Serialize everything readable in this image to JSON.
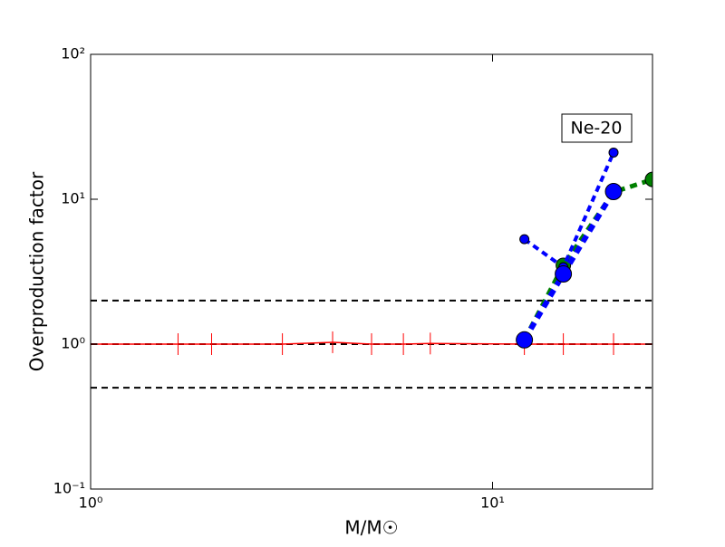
{
  "chart_data": {
    "type": "line",
    "log_x": true,
    "log_y": true,
    "xlabel": "M/M☉",
    "ylabel": "Overproduction factor",
    "annotation": "Ne-20",
    "xlim": [
      1,
      25
    ],
    "ylim": [
      0.1,
      100
    ],
    "xticks": [
      {
        "value": 1,
        "label": "10⁰"
      },
      {
        "value": 10,
        "label": "10¹"
      }
    ],
    "yticks": [
      {
        "value": 0.1,
        "label": "10⁻¹"
      },
      {
        "value": 1,
        "label": "10⁰"
      },
      {
        "value": 10,
        "label": "10¹"
      },
      {
        "value": 100,
        "label": "10²"
      }
    ],
    "hlines": [
      2,
      1,
      0.5
    ],
    "series": [
      {
        "color": "#ff0000",
        "marker": "|",
        "x": [
          1,
          1.65,
          2,
          3,
          4,
          5,
          6,
          7,
          12,
          15,
          20,
          25
        ],
        "values": [
          1,
          1,
          1,
          1,
          1.03,
          1,
          1,
          1.01,
          1,
          1,
          1,
          1
        ]
      },
      {
        "color": "#008000",
        "marker": "o",
        "x": [
          12,
          15,
          20,
          25
        ],
        "values": [
          1.07,
          3.5,
          11.2,
          13.7
        ]
      },
      {
        "color": "#0000ff",
        "marker": "o",
        "x": [
          12,
          15,
          20
        ],
        "values": [
          5.3,
          3.4,
          21
        ]
      },
      {
        "color": "#0000ff",
        "marker": "o",
        "x": [
          12,
          15,
          20
        ],
        "values": [
          1.07,
          3.05,
          11.3
        ]
      }
    ]
  }
}
